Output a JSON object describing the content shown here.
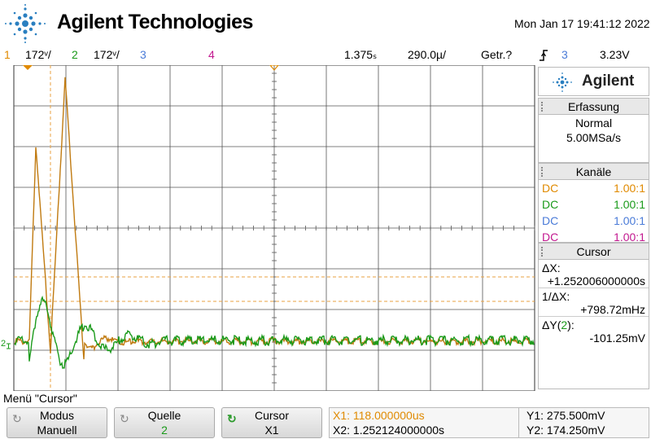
{
  "header": {
    "brand": "Agilent Technologies",
    "datetime": "Mon Jan 17 19:41:12 2022"
  },
  "status_bar": {
    "ch1_num": "1",
    "ch1_scale": "172ᵛ/",
    "ch2_num": "2",
    "ch2_scale": "172ᵛ/",
    "ch3_num": "3",
    "ch4_num": "4",
    "time_delay": "1.375ₛ",
    "time_scale": "290.0µ/",
    "trigger_mode": "Getr.?",
    "trigger_icon": "rising-edge-icon",
    "trigger_source": "3",
    "trigger_level": "3.23V"
  },
  "colors": {
    "ch1": "#e08a00",
    "ch2": "#1a9a1a",
    "ch3": "#4a7bd8",
    "ch4": "#c2188f",
    "grid": "#333333"
  },
  "side_panel": {
    "logo_text": "Agilent",
    "acquisition": {
      "title": "Erfassung",
      "mode": "Normal",
      "rate": "5.00MSa/s"
    },
    "channels": {
      "title": "Kanäle",
      "rows": [
        {
          "coupling": "DC",
          "probe": "1.00:1"
        },
        {
          "coupling": "DC",
          "probe": "1.00:1"
        },
        {
          "coupling": "DC",
          "probe": "1.00:1"
        },
        {
          "coupling": "DC",
          "probe": "1.00:1"
        }
      ]
    },
    "cursor": {
      "title": "Cursor",
      "dx_label": "ΔX:",
      "dx_value": "+1.252006000000s",
      "inv_dx_label": "1/ΔX:",
      "inv_dx_value": "+798.72mHz",
      "dy_label_pre": "ΔY(",
      "dy_label_ch": "2",
      "dy_label_post": "):",
      "dy_value": "-101.25mV"
    }
  },
  "menu": {
    "label": "Menü \"Cursor\"",
    "softkeys": [
      {
        "title": "Modus",
        "value": "Manuell",
        "icon": "rotate-knob-icon"
      },
      {
        "title": "Quelle",
        "value": "2",
        "icon": "rotate-knob-icon"
      },
      {
        "title": "Cursor",
        "value": "X1",
        "icon": "rotate-knob-active-icon"
      }
    ]
  },
  "measurements": {
    "x1_label": "X1: 118.000000us",
    "x2_label": "X2: 1.252124000000s",
    "y1_label": "Y1: 275.500mV",
    "y2_label": "Y2: 174.250mV"
  },
  "ground_marker": "2"
}
